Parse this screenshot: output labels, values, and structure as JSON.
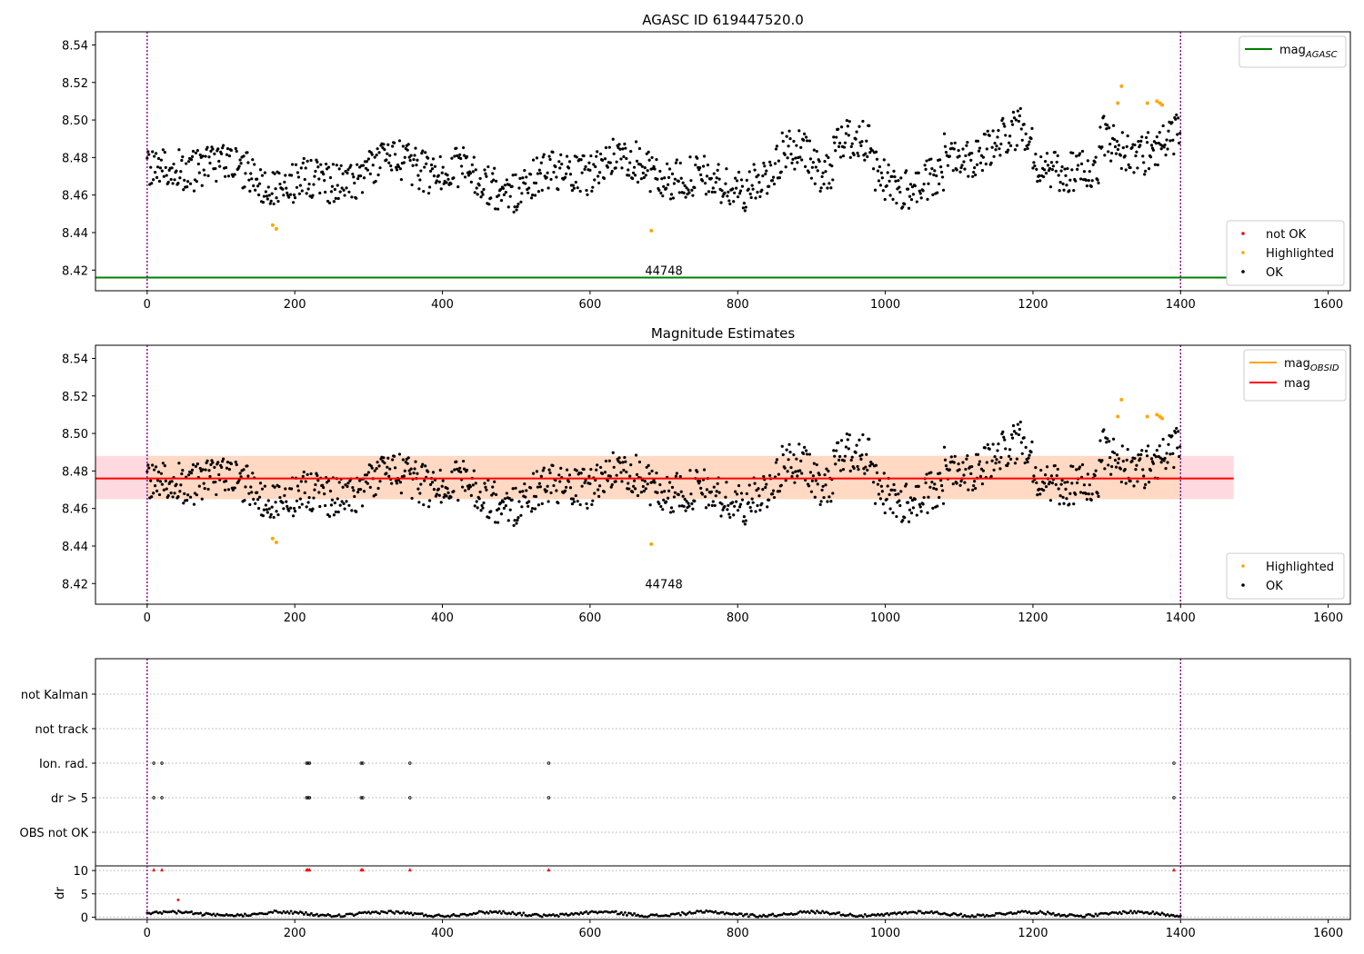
{
  "chart_data": [
    {
      "type": "scatter",
      "title": "AGASC ID 619447520.0",
      "xlim": [
        -70,
        1630
      ],
      "ylim": [
        8.409,
        8.547
      ],
      "xticks": [
        0,
        200,
        400,
        600,
        800,
        1000,
        1200,
        1400,
        1600
      ],
      "yticks": [
        8.42,
        8.44,
        8.46,
        8.48,
        8.5,
        8.52,
        8.54
      ],
      "ytick_labels": [
        "8.42",
        "8.44",
        "8.46",
        "8.48",
        "8.50",
        "8.52",
        "8.54"
      ],
      "vlines": [
        0,
        1400
      ],
      "hline": {
        "y": 8.416,
        "x_range": [
          -70,
          1472
        ],
        "color": "#008000"
      },
      "obsid_label": {
        "text": "44748",
        "x": 700,
        "y": 8.418
      },
      "legend_top": [
        {
          "label": "mag",
          "sub": "AGASC",
          "color": "#008000",
          "marker": "line"
        }
      ],
      "legend_bottom": [
        {
          "label": "not OK",
          "color": "#ff0000",
          "marker": "dot"
        },
        {
          "label": "Highlighted",
          "color": "#ffa500",
          "marker": "dot"
        },
        {
          "label": "OK",
          "color": "#000000",
          "marker": "dot"
        }
      ],
      "series": [
        {
          "name": "Highlighted",
          "color": "#ffa500",
          "x": [
            170,
            175,
            683,
            1315,
            1320,
            1355,
            1368,
            1372,
            1375
          ],
          "y": [
            8.444,
            8.442,
            8.441,
            8.509,
            8.518,
            8.509,
            8.51,
            8.509,
            8.508
          ]
        }
      ]
    },
    {
      "type": "scatter",
      "title": "Magnitude Estimates",
      "xlim": [
        -70,
        1630
      ],
      "ylim": [
        8.409,
        8.547
      ],
      "xticks": [
        0,
        200,
        400,
        600,
        800,
        1000,
        1200,
        1400,
        1600
      ],
      "yticks": [
        8.42,
        8.44,
        8.46,
        8.48,
        8.5,
        8.52,
        8.54
      ],
      "ytick_labels": [
        "8.42",
        "8.44",
        "8.46",
        "8.48",
        "8.50",
        "8.52",
        "8.54"
      ],
      "vlines": [
        0,
        1400
      ],
      "band_outer": {
        "x_range": [
          -70,
          1472
        ],
        "y_range": [
          8.465,
          8.488
        ],
        "color": "#ffc0cb"
      },
      "band_inner": {
        "x_range": [
          0,
          1400
        ],
        "y_range": [
          8.465,
          8.488
        ],
        "color": "#ffd8c0"
      },
      "hline": {
        "y": 8.476,
        "x_range": [
          -70,
          1472
        ],
        "color": "#ff0000"
      },
      "obsid_label": {
        "text": "44748",
        "x": 700,
        "y": 8.418
      },
      "legend_top": [
        {
          "label": "mag",
          "sub": "OBSID",
          "color": "#ffa500",
          "marker": "line"
        },
        {
          "label": "mag",
          "sub": "",
          "color": "#ff0000",
          "marker": "line"
        }
      ],
      "legend_bottom": [
        {
          "label": "Highlighted",
          "color": "#ffa500",
          "marker": "dot"
        },
        {
          "label": "OK",
          "color": "#000000",
          "marker": "dot"
        }
      ],
      "series": [
        {
          "name": "Highlighted",
          "color": "#ffa500",
          "x": [
            170,
            175,
            683,
            1315,
            1320,
            1355,
            1368,
            1372,
            1375
          ],
          "y": [
            8.444,
            8.442,
            8.441,
            8.509,
            8.518,
            8.509,
            8.51,
            8.509,
            8.508
          ]
        }
      ]
    },
    {
      "type": "scatter",
      "xlim": [
        -70,
        1630
      ],
      "xticks": [
        0,
        200,
        400,
        600,
        800,
        1000,
        1200,
        1400,
        1600
      ],
      "flag_rows": [
        "not Kalman",
        "not track",
        "Ion. rad.",
        "dr > 5",
        "OBS not OK"
      ],
      "flag_points": {
        "Ion. rad.": [
          9,
          20,
          216,
          218,
          220,
          290,
          292,
          356,
          544,
          1391
        ],
        "dr > 5": [
          9,
          20,
          216,
          218,
          220,
          290,
          292,
          356,
          544,
          1391
        ]
      },
      "vlines": [
        0,
        1400
      ],
      "dr_panel": {
        "ylabel": "dr",
        "ylim": [
          -0.5,
          11
        ],
        "yticks": [
          0,
          5,
          10
        ],
        "ytick_labels": [
          "0",
          "5",
          "10"
        ],
        "capped_points": {
          "x": [
            9,
            20,
            216,
            218,
            220,
            290,
            292,
            356,
            544,
            1391
          ],
          "y": 10,
          "color": "#ff0000"
        },
        "outlier_points": {
          "x": [
            42
          ],
          "y": [
            3.7
          ],
          "color": "#ff0000"
        }
      }
    }
  ],
  "colors": {
    "ok": "#000000",
    "highlighted": "#ffa500",
    "not_ok": "#ff0000",
    "vline": "#800080",
    "grid": "#b0b0b0"
  }
}
